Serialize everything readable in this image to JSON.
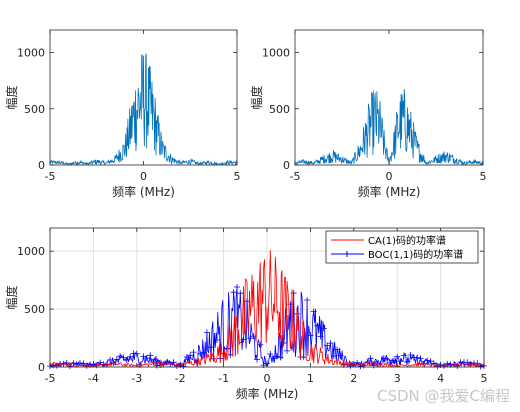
{
  "chart_data": [
    {
      "type": "line",
      "panel": "top-left",
      "title": "",
      "xlabel": "频率 (MHz)",
      "ylabel": "幅度",
      "xlim": [
        -5,
        5
      ],
      "ylim": [
        0,
        1200
      ],
      "xticks": [
        "-5",
        "0",
        "5"
      ],
      "yticks": [
        "0",
        "500",
        "1000"
      ],
      "grid": false,
      "series": [
        {
          "signal": "CA(1)",
          "color": "#0072BD",
          "x": [
            -5,
            -4.5,
            -4,
            -3.5,
            -3,
            -2.5,
            -2,
            -1.5,
            -1,
            -0.75,
            -0.5,
            -0.25,
            0,
            0.25,
            0.5,
            0.75,
            1,
            1.5,
            2,
            2.5,
            3,
            3.5,
            4,
            4.5,
            5
          ],
          "envelope": [
            40,
            40,
            15,
            45,
            20,
            55,
            30,
            90,
            250,
            500,
            780,
            960,
            1080,
            960,
            780,
            500,
            250,
            90,
            30,
            55,
            20,
            45,
            15,
            40,
            40
          ]
        }
      ]
    },
    {
      "type": "line",
      "panel": "top-right",
      "title": "",
      "xlabel": "频率 (MHz)",
      "ylabel": "幅度",
      "xlim": [
        -5,
        5
      ],
      "ylim": [
        0,
        1200
      ],
      "xticks": [
        "-5",
        "0",
        "5"
      ],
      "yticks": [
        "0",
        "500",
        "1000"
      ],
      "grid": false,
      "series": [
        {
          "signal": "BOC(1,1)",
          "color": "#0072BD",
          "x": [
            -5,
            -4.5,
            -4,
            -3.5,
            -3,
            -2.5,
            -2,
            -1.5,
            -1,
            -0.75,
            -0.5,
            -0.25,
            0,
            0.25,
            0.5,
            0.75,
            1,
            1.5,
            2,
            2.5,
            3,
            3.5,
            4,
            4.5,
            5
          ],
          "envelope": [
            30,
            50,
            30,
            90,
            140,
            90,
            30,
            250,
            620,
            720,
            620,
            300,
            40,
            300,
            620,
            720,
            620,
            250,
            30,
            90,
            140,
            90,
            30,
            50,
            30
          ]
        }
      ]
    },
    {
      "type": "line",
      "panel": "bottom",
      "title": "",
      "xlabel": "频率 (MHz)",
      "ylabel": "幅度",
      "xlim": [
        -5,
        5
      ],
      "ylim": [
        0,
        1200
      ],
      "xticks": [
        "-5",
        "-4",
        "-3",
        "-2",
        "-1",
        "0",
        "1",
        "2",
        "3",
        "4",
        "5"
      ],
      "yticks": [
        "0",
        "500",
        "1000"
      ],
      "grid": true,
      "legend_position": "top-right",
      "series": [
        {
          "name": "CA(1)码的功率谱",
          "color": "#FF0000",
          "x": [
            -5,
            -4.5,
            -4,
            -3.5,
            -3,
            -2.5,
            -2,
            -1.5,
            -1,
            -0.75,
            -0.5,
            -0.25,
            0,
            0.25,
            0.5,
            0.75,
            1,
            1.5,
            2,
            2.5,
            3,
            3.5,
            4,
            4.5,
            5
          ],
          "envelope": [
            40,
            40,
            15,
            45,
            20,
            55,
            30,
            90,
            250,
            500,
            780,
            960,
            1080,
            960,
            780,
            500,
            250,
            90,
            30,
            55,
            20,
            45,
            15,
            40,
            40
          ]
        },
        {
          "name": "BOC(1,1)码的功率谱",
          "color": "#0000FF",
          "marker": "+",
          "x": [
            -5,
            -4.5,
            -4,
            -3.5,
            -3,
            -2.5,
            -2,
            -1.5,
            -1,
            -0.75,
            -0.5,
            -0.25,
            0,
            0.25,
            0.5,
            0.75,
            1,
            1.5,
            2,
            2.5,
            3,
            3.5,
            4,
            4.5,
            5
          ],
          "envelope": [
            30,
            50,
            30,
            90,
            140,
            90,
            30,
            250,
            620,
            720,
            620,
            300,
            40,
            300,
            620,
            720,
            620,
            250,
            30,
            90,
            140,
            90,
            30,
            50,
            30
          ]
        }
      ]
    }
  ],
  "watermark": "CSDN @我爱C编程"
}
